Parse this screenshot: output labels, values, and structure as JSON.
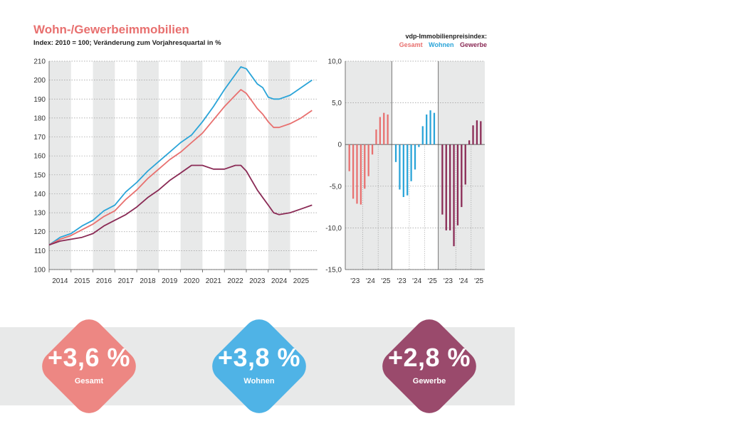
{
  "header": {
    "title": "Wohn-/Gewerbeimmobilien",
    "subtitle": "Index: 2010 = 100; Veränderung zum Vorjahresquartal in %"
  },
  "legend": {
    "title": "vdp-Immobilienpreisindex:",
    "items": [
      {
        "label": "Gesamt",
        "color": "#e8706f"
      },
      {
        "label": "Wohnen",
        "color": "#2aa4d8"
      },
      {
        "label": "Gewerbe",
        "color": "#8a2a55"
      }
    ]
  },
  "colors": {
    "gesamt": "#e8706f",
    "wohnen": "#2aa4d8",
    "gewerbe": "#8a2a55",
    "kpi_gesamt": "#ed8783",
    "kpi_wohnen": "#4fb3e6",
    "kpi_gewerbe": "#9a4a6c",
    "stripe": "#e8e9e9"
  },
  "chart_data": [
    {
      "type": "line",
      "ylim": [
        100,
        210
      ],
      "yticks": [
        100,
        110,
        120,
        130,
        140,
        150,
        160,
        170,
        180,
        190,
        200,
        210
      ],
      "xlim": [
        2013.5,
        2025.75
      ],
      "xticks": [
        2014,
        2015,
        2016,
        2017,
        2018,
        2019,
        2020,
        2021,
        2022,
        2023,
        2024,
        2025
      ],
      "grid": true,
      "series": [
        {
          "name": "Wohnen",
          "color": "#2aa4d8",
          "x": [
            2013.5,
            2014,
            2014.5,
            2015,
            2015.5,
            2016,
            2016.5,
            2017,
            2017.5,
            2018,
            2018.5,
            2019,
            2019.5,
            2020,
            2020.5,
            2021,
            2021.5,
            2022,
            2022.25,
            2022.5,
            2022.75,
            2023,
            2023.25,
            2023.5,
            2023.75,
            2024,
            2024.5,
            2025,
            2025.5
          ],
          "y": [
            113,
            117,
            119,
            123,
            126,
            131,
            134,
            141,
            146,
            152,
            157,
            162,
            167,
            171,
            178,
            186,
            195,
            203,
            207,
            206,
            202,
            198,
            196,
            191,
            190,
            190,
            192,
            196,
            200
          ]
        },
        {
          "name": "Gesamt",
          "color": "#e8706f",
          "x": [
            2013.5,
            2014,
            2014.5,
            2015,
            2015.5,
            2016,
            2016.5,
            2017,
            2017.5,
            2018,
            2018.5,
            2019,
            2019.5,
            2020,
            2020.5,
            2021,
            2021.5,
            2022,
            2022.25,
            2022.5,
            2022.75,
            2023,
            2023.25,
            2023.5,
            2023.75,
            2024,
            2024.5,
            2025,
            2025.5
          ],
          "y": [
            113,
            116,
            118,
            121,
            124,
            128,
            131,
            137,
            142,
            148,
            153,
            158,
            162,
            167,
            172,
            179,
            186,
            192,
            195,
            193,
            189,
            185,
            182,
            178,
            175,
            175,
            177,
            180,
            184
          ]
        },
        {
          "name": "Gewerbe",
          "color": "#8a2a55",
          "x": [
            2013.5,
            2014,
            2014.5,
            2015,
            2015.5,
            2016,
            2016.5,
            2017,
            2017.5,
            2018,
            2018.5,
            2019,
            2019.5,
            2020,
            2020.5,
            2021,
            2021.5,
            2022,
            2022.25,
            2022.5,
            2022.75,
            2023,
            2023.25,
            2023.5,
            2023.75,
            2024,
            2024.5,
            2025,
            2025.5
          ],
          "y": [
            113,
            115,
            116,
            117,
            119,
            123,
            126,
            129,
            133,
            138,
            142,
            147,
            151,
            155,
            155,
            153,
            153,
            155,
            155,
            152,
            147,
            142,
            138,
            134,
            130,
            129,
            130,
            132,
            134
          ]
        }
      ]
    },
    {
      "type": "bar",
      "ylim": [
        -15,
        10
      ],
      "yticks": [
        10,
        5,
        0,
        -5,
        -10,
        -15
      ],
      "ytick_labels": [
        "10,0",
        "5,0",
        "0",
        "-5,0",
        "-10,0",
        "-15,0"
      ],
      "grid": true,
      "groups": [
        {
          "name": "Gesamt",
          "color": "#e8706f",
          "xticks": [
            "'23",
            "'24",
            "'25"
          ],
          "values": [
            -3.2,
            -6.5,
            -7.1,
            -7.2,
            -5.3,
            -3.8,
            -1.2,
            1.8,
            3.3,
            3.8,
            3.6
          ]
        },
        {
          "name": "Wohnen",
          "color": "#2aa4d8",
          "xticks": [
            "'23",
            "'24",
            "'25"
          ],
          "values": [
            -2.1,
            -5.4,
            -6.3,
            -6.1,
            -4.4,
            -3.0,
            -0.3,
            2.2,
            3.6,
            4.1,
            3.8
          ]
        },
        {
          "name": "Gewerbe",
          "color": "#8a2a55",
          "xticks": [
            "'23",
            "'24",
            "'25"
          ],
          "values": [
            -8.4,
            -10.3,
            -10.3,
            -12.2,
            -9.7,
            -7.5,
            -4.8,
            0.5,
            2.3,
            2.9,
            2.8
          ]
        }
      ]
    }
  ],
  "kpis": [
    {
      "value": "+3,6 %",
      "label": "Gesamt",
      "color": "#ed8783"
    },
    {
      "value": "+3,8 %",
      "label": "Wohnen",
      "color": "#4fb3e6"
    },
    {
      "value": "+2,8 %",
      "label": "Gewerbe",
      "color": "#9a4a6c"
    }
  ]
}
